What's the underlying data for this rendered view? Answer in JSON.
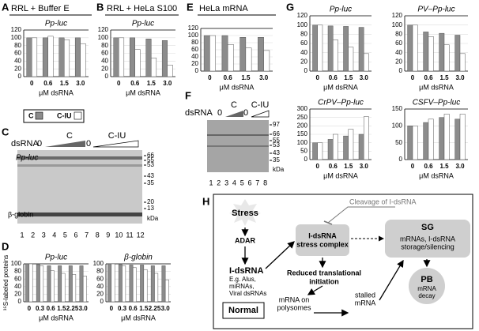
{
  "chart_data": [
    {
      "type": "bar",
      "panel": "A",
      "header": "RRL + Buffer E",
      "title": "Pp-luc",
      "categories": [
        "0",
        "0.6",
        "1.5",
        "3.0"
      ],
      "xlabel": "μM dsRNA",
      "series": [
        {
          "color": "#8c8c8c",
          "values": [
            100,
            100,
            100,
            100
          ]
        },
        {
          "color": "#ffffff",
          "values": [
            100,
            104,
            95,
            85
          ]
        }
      ],
      "ylim": [
        0,
        120
      ],
      "yticks": [
        0,
        20,
        40,
        60,
        80,
        100,
        120
      ],
      "grid": true
    },
    {
      "type": "bar",
      "panel": "B",
      "header": "RRL + HeLa S100",
      "title": "Pp-luc",
      "categories": [
        "0",
        "0.6",
        "1.5",
        "3.0"
      ],
      "xlabel": "μM dsRNA",
      "series": [
        {
          "color": "#8c8c8c",
          "values": [
            100,
            100,
            97,
            93
          ]
        },
        {
          "color": "#ffffff",
          "values": [
            100,
            70,
            48,
            30
          ]
        }
      ],
      "ylim": [
        0,
        120
      ],
      "yticks": [
        0,
        20,
        40,
        60,
        80,
        100,
        120
      ],
      "grid": true
    },
    {
      "type": "bar",
      "panel": "D",
      "ylabel": "³⁵S-labeled proteins",
      "title": "Pp-luc",
      "categories": [
        "0",
        "0.3",
        "0.6",
        "1.5",
        "2.25",
        "3.0"
      ],
      "xlabel": "μM dsRNA",
      "series": [
        {
          "color": "#8c8c8c",
          "values": [
            100,
            98,
            95,
            95,
            95,
            95
          ]
        },
        {
          "color": "#ffffff",
          "values": [
            100,
            95,
            82,
            75,
            72,
            68
          ]
        }
      ],
      "ylim": [
        0,
        100
      ],
      "yticks": [
        0,
        20,
        40,
        60,
        80,
        100
      ],
      "grid": true
    },
    {
      "type": "bar",
      "title": "β-globin",
      "categories": [
        "0",
        "0.3",
        "0.6",
        "1.5",
        "2.25",
        "3.0"
      ],
      "xlabel": "μM dsRNA",
      "series": [
        {
          "color": "#8c8c8c",
          "values": [
            100,
            98,
            97,
            97,
            95,
            95
          ]
        },
        {
          "color": "#ffffff",
          "values": [
            100,
            95,
            90,
            85,
            75,
            58
          ]
        }
      ],
      "ylim": [
        0,
        100
      ],
      "yticks": [
        0,
        20,
        40,
        60,
        80,
        100
      ],
      "grid": true
    },
    {
      "type": "bar",
      "panel": "E",
      "header": "HeLa mRNA",
      "categories": [
        "0",
        "0.6",
        "1.5",
        "3.0"
      ],
      "xlabel": "μM dsRNA",
      "series": [
        {
          "color": "#8c8c8c",
          "values": [
            100,
            100,
            95,
            95
          ]
        },
        {
          "color": "#ffffff",
          "values": [
            100,
            75,
            65,
            58
          ]
        }
      ],
      "ylim": [
        0,
        120
      ],
      "yticks": [
        0,
        20,
        40,
        60,
        80,
        100,
        120
      ],
      "grid": true
    },
    {
      "type": "bar",
      "panel": "G",
      "title": "Pp-luc",
      "categories": [
        "0",
        "0.6",
        "1.5",
        "3.0"
      ],
      "xlabel": "μM dsRNA",
      "series": [
        {
          "color": "#8c8c8c",
          "values": [
            100,
            98,
            97,
            95
          ]
        },
        {
          "color": "#ffffff",
          "values": [
            100,
            68,
            52,
            38
          ]
        }
      ],
      "ylim": [
        0,
        120
      ],
      "yticks": [
        0,
        20,
        40,
        60,
        80,
        100,
        120
      ],
      "grid": true
    },
    {
      "type": "bar",
      "title": "PV–Pp-luc",
      "categories": [
        "0",
        "0.6",
        "1.5",
        "3.0"
      ],
      "xlabel": "μM dsRNA",
      "series": [
        {
          "color": "#8c8c8c",
          "values": [
            100,
            85,
            82,
            78
          ]
        },
        {
          "color": "#ffffff",
          "values": [
            100,
            75,
            57,
            38
          ]
        }
      ],
      "ylim": [
        0,
        120
      ],
      "yticks": [
        0,
        20,
        40,
        60,
        80,
        100,
        120
      ],
      "grid": true
    },
    {
      "type": "bar",
      "title": "CrPV–Pp-luc",
      "categories": [
        "0",
        "0.6",
        "1.5",
        "3.0"
      ],
      "xlabel": "μM dsRNA",
      "series": [
        {
          "color": "#8c8c8c",
          "values": [
            100,
            120,
            140,
            150
          ]
        },
        {
          "color": "#ffffff",
          "values": [
            100,
            150,
            180,
            255
          ]
        }
      ],
      "ylim": [
        0,
        300
      ],
      "yticks": [
        0,
        50,
        100,
        150,
        200,
        250,
        300
      ],
      "grid": true
    },
    {
      "type": "bar",
      "title": "CSFV–Pp-luc",
      "categories": [
        "0",
        "0.6",
        "1.5",
        "3.0"
      ],
      "xlabel": "μM dsRNA",
      "series": [
        {
          "color": "#8c8c8c",
          "values": [
            100,
            110,
            125,
            120
          ]
        },
        {
          "color": "#ffffff",
          "values": [
            100,
            120,
            135,
            135
          ]
        }
      ],
      "ylim": [
        0,
        150
      ],
      "yticks": [
        0,
        50,
        100,
        150
      ],
      "grid": true
    }
  ],
  "legend": [
    {
      "name": "C",
      "color": "#8c8c8c"
    },
    {
      "name": "C-IU",
      "color": "#ffffff"
    }
  ],
  "gels": [
    {
      "panel": "C",
      "row_label": "dsRNA",
      "groups": [
        {
          "zero": "0",
          "name": "C"
        },
        {
          "zero": "0",
          "name": "C-IU"
        }
      ],
      "bands": [
        "Pp-luc",
        "β-globin"
      ],
      "markers": [
        66,
        55,
        53,
        43,
        35,
        20,
        13
      ],
      "unit": "kDa",
      "lanes": [
        1,
        2,
        3,
        4,
        5,
        6,
        7,
        8,
        9,
        10,
        11,
        12
      ]
    },
    {
      "panel": "F",
      "row_label": "dsRNA",
      "groups": [
        {
          "zero": "0",
          "name": "C"
        },
        {
          "zero": "0",
          "name": "C-IU"
        }
      ],
      "markers": [
        97,
        66,
        55,
        53,
        43,
        35
      ],
      "unit": "kDa",
      "lanes": [
        1,
        2,
        3,
        4,
        5,
        6,
        7,
        8
      ]
    }
  ],
  "diagram": {
    "panel": "H",
    "cleavage": "Cleavage of I-dsRNA",
    "stress": "Stress",
    "adar": "ADAR",
    "idsrna": "I-dsRNA",
    "examples": [
      "E.g. Alus,",
      "miRNAs,",
      "Viral dsRNAs"
    ],
    "complex": [
      "I-dsRNA",
      "stress complex"
    ],
    "reduced": [
      "Reduced translational",
      "initiation"
    ],
    "sg": "SG",
    "sg_text": [
      "mRNAs, I-dsRNA",
      "storage/silencing"
    ],
    "pb": "PB",
    "pb_text": [
      "mRNA",
      "decay"
    ],
    "normal": "Normal",
    "polysomes": [
      "mRNA on",
      "polysomes"
    ],
    "stalled": [
      "stalled",
      "mRNA"
    ]
  }
}
